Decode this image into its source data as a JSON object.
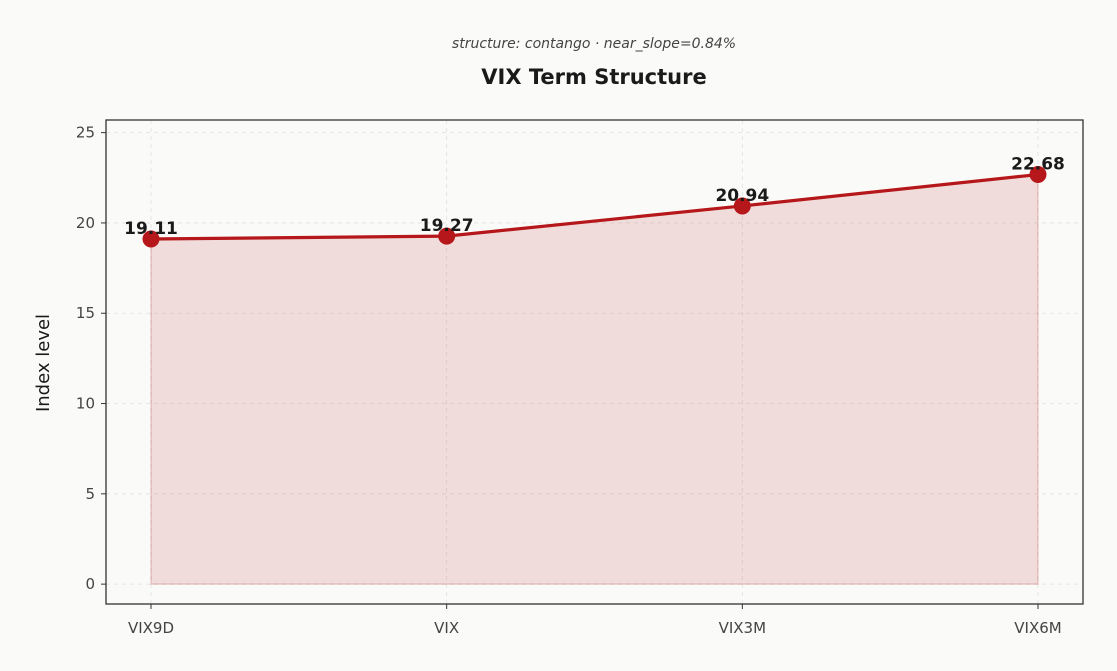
{
  "chart_data": {
    "type": "area",
    "subtitle": "structure: contango · near_slope=0.84%",
    "title": "VIX Term Structure",
    "xlabel": "",
    "ylabel": "Index level",
    "categories": [
      "VIX9D",
      "VIX",
      "VIX3M",
      "VIX6M"
    ],
    "series": [
      {
        "values": [
          19.11,
          19.27,
          20.94,
          22.68
        ]
      }
    ],
    "data_labels": [
      "19.11",
      "19.27",
      "20.94",
      "22.68"
    ],
    "ylim": [
      -1.1,
      25.7
    ],
    "yticks": [
      0,
      5,
      10,
      15,
      20,
      25
    ],
    "grid": true,
    "colors": {
      "line": "#b5171a",
      "fill": "#b5171a",
      "background": "#fafaf8"
    }
  }
}
